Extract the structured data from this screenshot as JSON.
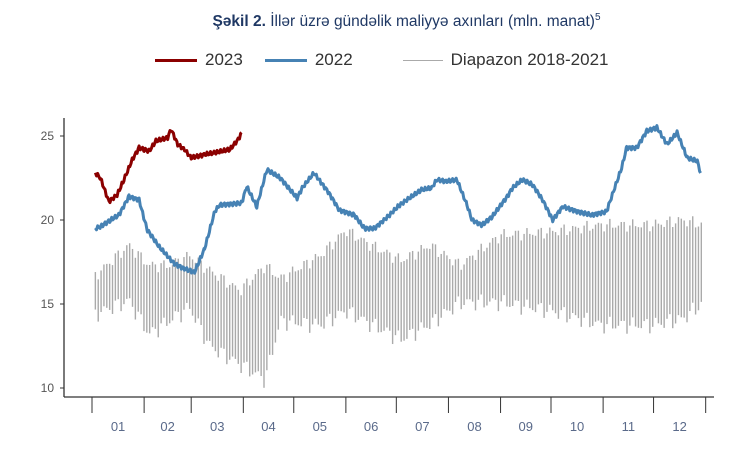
{
  "chart_data": {
    "type": "line",
    "title_bold": "Şəkil 2.",
    "title_rest": " İllər üzrə gündəlik maliyyə axınları (mln. manat)",
    "title_sup": "5",
    "xlabel": "",
    "ylabel": "",
    "ylim": [
      9.5,
      26.5
    ],
    "yticks": [
      10,
      15,
      20,
      25
    ],
    "xlim_days": [
      1,
      365
    ],
    "month_labels": [
      "01",
      "02",
      "03",
      "04",
      "05",
      "06",
      "07",
      "08",
      "09",
      "10",
      "11",
      "12"
    ],
    "legend": [
      {
        "name": "2023",
        "color": "#8b0000"
      },
      {
        "name": "2022",
        "color": "#4682b4"
      },
      {
        "name": "Diapazon 2018-2021",
        "color": "#aaaaaa"
      }
    ],
    "legend_position": "top",
    "series": [
      {
        "name": "2023",
        "color": "#8b0000",
        "days": [
          3,
          6,
          11,
          16,
          20,
          25,
          29,
          32,
          35,
          39,
          46,
          48,
          52,
          56,
          60,
          68,
          74,
          83,
          88,
          90
        ],
        "values": [
          22.8,
          22.5,
          21.1,
          21.5,
          22.4,
          23.6,
          24.3,
          24.2,
          24.1,
          24.7,
          24.9,
          25.4,
          24.5,
          24.2,
          23.7,
          23.9,
          24.0,
          24.2,
          24.8,
          25.2
        ]
      },
      {
        "name": "2022",
        "color": "#4682b4",
        "days": [
          3,
          6,
          12,
          17,
          23,
          29,
          33,
          34,
          41,
          50,
          56,
          62,
          68,
          74,
          77,
          89,
          90,
          93,
          99,
          105,
          113,
          123,
          126,
          133,
          142,
          148,
          157,
          163,
          169,
          178,
          184,
          197,
          203,
          206,
          212,
          218,
          224,
          227,
          233,
          239,
          248,
          251,
          257,
          263,
          269,
          275,
          281,
          290,
          298,
          307,
          316,
          319,
          325,
          331,
          337,
          343,
          349,
          355,
          361,
          363
        ],
        "values": [
          19.5,
          19.6,
          20.0,
          20.3,
          21.4,
          21.2,
          19.7,
          19.4,
          18.4,
          17.4,
          17.1,
          16.9,
          18.3,
          20.5,
          20.9,
          21.0,
          21.0,
          22.0,
          20.8,
          23.0,
          22.5,
          21.3,
          21.9,
          22.8,
          21.6,
          20.6,
          20.3,
          19.5,
          19.5,
          20.3,
          20.9,
          21.8,
          21.9,
          22.4,
          22.3,
          22.4,
          20.9,
          20.0,
          19.7,
          20.2,
          21.4,
          21.9,
          22.4,
          22.1,
          21.2,
          20.0,
          20.8,
          20.5,
          20.3,
          20.5,
          23.1,
          24.3,
          24.3,
          25.3,
          25.5,
          24.5,
          25.2,
          23.7,
          23.5,
          22.8
        ]
      }
    ],
    "range": {
      "name": "Diapazon 2018-2021",
      "color": "#aaaaaa",
      "days": [
        3,
        23,
        35,
        47,
        59,
        71,
        89,
        104,
        113,
        137,
        152,
        167,
        185,
        202,
        220,
        244,
        274,
        304,
        334,
        352,
        365
      ],
      "low": [
        14.4,
        15.2,
        13.2,
        14.0,
        14.8,
        12.5,
        11.4,
        10.5,
        14.0,
        13.75,
        14.6,
        13.8,
        12.9,
        13.8,
        15.1,
        15.1,
        14.6,
        13.75,
        13.75,
        14.1,
        15.1
      ],
      "high": [
        16.7,
        18.5,
        17.3,
        17.3,
        17.9,
        17.0,
        15.8,
        17.3,
        16.5,
        17.9,
        19.4,
        18.5,
        17.6,
        18.5,
        17.3,
        19.1,
        19.3,
        19.7,
        19.7,
        20.0,
        19.7
      ]
    }
  }
}
